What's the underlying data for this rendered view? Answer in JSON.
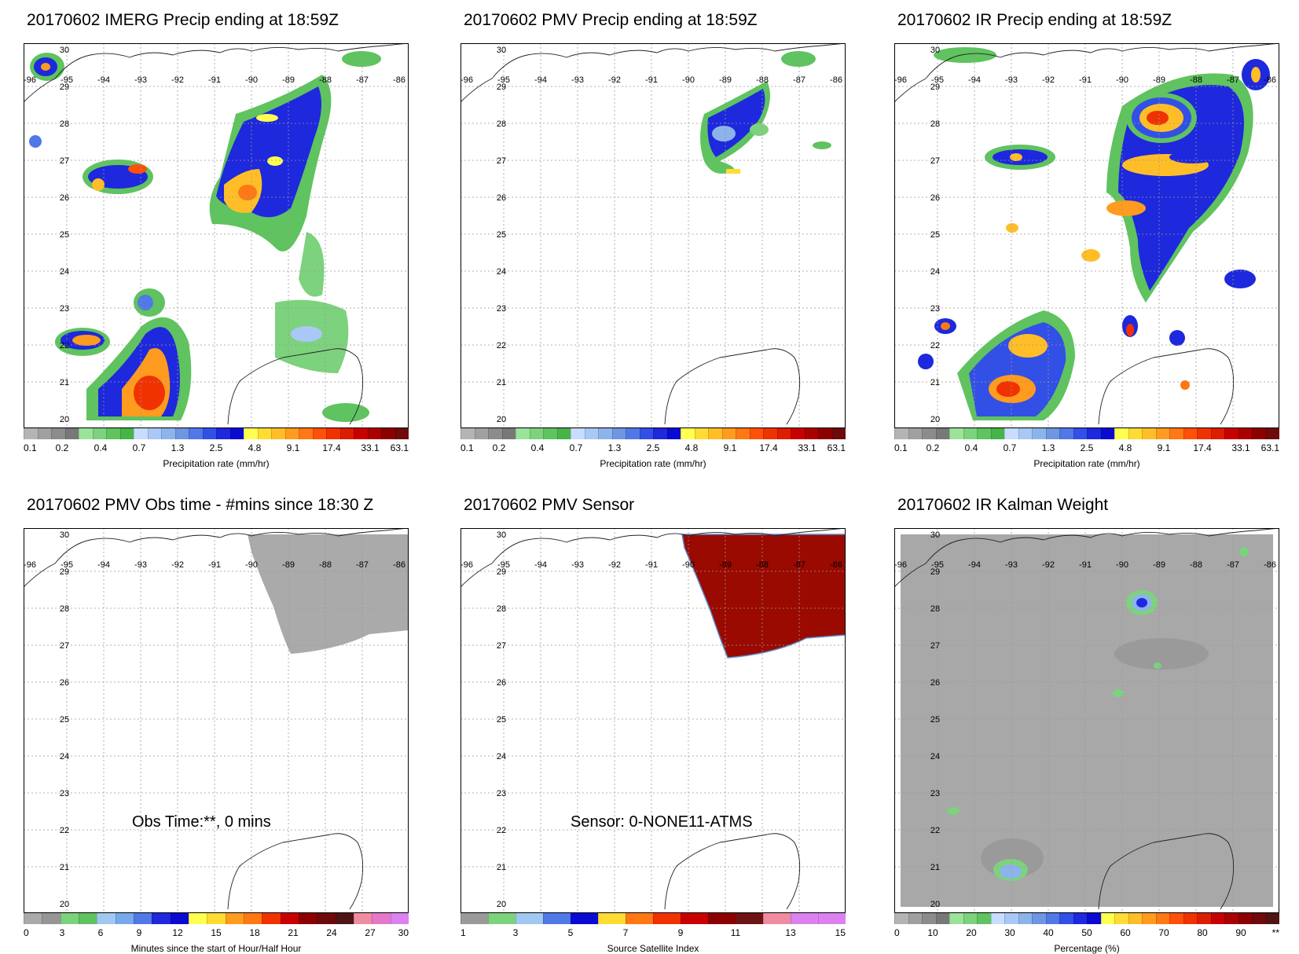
{
  "map": {
    "lon_labels": [
      "-96",
      "-95",
      "-94",
      "-93",
      "-92",
      "-91",
      "-90",
      "-89",
      "-88",
      "-87",
      "-86"
    ],
    "lat_labels": [
      "30",
      "29",
      "28",
      "27",
      "26",
      "25",
      "24",
      "23",
      "22",
      "21",
      "20"
    ]
  },
  "panels": [
    {
      "title": "20170602 IMERG Precip ending at 18:59Z",
      "colorbar_label": "Precipitation rate (mm/hr)",
      "ticks": [
        "0.1",
        "0.2",
        "0.4",
        "0.7",
        "1.3",
        "2.5",
        "4.8",
        "9.1",
        "17.4",
        "33.1",
        "63.1"
      ],
      "colors": [
        "#b4b4b4",
        "#a0a0a0",
        "#8c8c8c",
        "#787878",
        "#9be39b",
        "#7dd27d",
        "#5fc35f",
        "#46b446",
        "#c8dcff",
        "#aac8f5",
        "#8cb4eb",
        "#6e96e1",
        "#5078e6",
        "#3250e6",
        "#1e28dc",
        "#0a0ad2",
        "#ffff50",
        "#ffdc32",
        "#ffbe28",
        "#ff9b1e",
        "#ff7814",
        "#ff500a",
        "#f03200",
        "#dc1e00",
        "#c80000",
        "#aa0000",
        "#8c0000",
        "#6e0a0a"
      ],
      "overlay": ""
    },
    {
      "title": "20170602 PMV Precip ending at 18:59Z",
      "colorbar_label": "Precipitation rate (mm/hr)",
      "ticks": [
        "0.1",
        "0.2",
        "0.4",
        "0.7",
        "1.3",
        "2.5",
        "4.8",
        "9.1",
        "17.4",
        "33.1",
        "63.1"
      ],
      "colors": [
        "#b4b4b4",
        "#a0a0a0",
        "#8c8c8c",
        "#787878",
        "#9be39b",
        "#7dd27d",
        "#5fc35f",
        "#46b446",
        "#c8dcff",
        "#aac8f5",
        "#8cb4eb",
        "#6e96e1",
        "#5078e6",
        "#3250e6",
        "#1e28dc",
        "#0a0ad2",
        "#ffff50",
        "#ffdc32",
        "#ffbe28",
        "#ff9b1e",
        "#ff7814",
        "#ff500a",
        "#f03200",
        "#dc1e00",
        "#c80000",
        "#aa0000",
        "#8c0000",
        "#6e0a0a"
      ],
      "overlay": ""
    },
    {
      "title": "20170602 IR Precip ending at 18:59Z",
      "colorbar_label": "Precipitation rate (mm/hr)",
      "ticks": [
        "0.1",
        "0.2",
        "0.4",
        "0.7",
        "1.3",
        "2.5",
        "4.8",
        "9.1",
        "17.4",
        "33.1",
        "63.1"
      ],
      "colors": [
        "#b4b4b4",
        "#a0a0a0",
        "#8c8c8c",
        "#787878",
        "#9be39b",
        "#7dd27d",
        "#5fc35f",
        "#46b446",
        "#c8dcff",
        "#aac8f5",
        "#8cb4eb",
        "#6e96e1",
        "#5078e6",
        "#3250e6",
        "#1e28dc",
        "#0a0ad2",
        "#ffff50",
        "#ffdc32",
        "#ffbe28",
        "#ff9b1e",
        "#ff7814",
        "#ff500a",
        "#f03200",
        "#dc1e00",
        "#c80000",
        "#aa0000",
        "#8c0000",
        "#6e0a0a"
      ],
      "overlay": ""
    },
    {
      "title": "20170602 PMV Obs time - #mins since 18:30 Z",
      "colorbar_label": "Minutes since the start of Hour/Half Hour",
      "ticks": [
        "0",
        "3",
        "6",
        "9",
        "12",
        "15",
        "18",
        "21",
        "24",
        "27",
        "30"
      ],
      "colors": [
        "#aaaaaa",
        "#969696",
        "#7dd27d",
        "#5fc35f",
        "#a0c8f0",
        "#78aaeb",
        "#5078e6",
        "#1e28dc",
        "#0a0ad2",
        "#ffff50",
        "#ffdc32",
        "#ff9b1e",
        "#ff7814",
        "#f03200",
        "#c80000",
        "#8c0000",
        "#6e0a0a",
        "#501414",
        "#f08ca0",
        "#e678c8",
        "#dc82f0"
      ],
      "overlay": "Obs Time:**, 0 mins"
    },
    {
      "title": "20170602 PMV Sensor",
      "colorbar_label": "Source Satellite Index",
      "ticks": [
        "1",
        "3",
        "5",
        "7",
        "9",
        "11",
        "13",
        "15"
      ],
      "colors": [
        "#9a9a9a",
        "#7dd27d",
        "#a0c8f0",
        "#5078e6",
        "#0a0ad2",
        "#ffdc32",
        "#ff7814",
        "#f03200",
        "#c80000",
        "#8c0000",
        "#6e1414",
        "#f08ca0",
        "#dc82f0",
        "#dc82f0"
      ],
      "overlay": "Sensor:  0-NONE11-ATMS"
    },
    {
      "title": "20170602 IR Kalman Weight",
      "colorbar_label": "Percentage (%)",
      "ticks": [
        "0",
        "10",
        "20",
        "30",
        "40",
        "50",
        "60",
        "70",
        "80",
        "90",
        "**"
      ],
      "colors": [
        "#b4b4b4",
        "#a0a0a0",
        "#8c8c8c",
        "#787878",
        "#9be39b",
        "#7dd27d",
        "#5fc35f",
        "#c8dcff",
        "#aac8f5",
        "#8cb4eb",
        "#6e96e1",
        "#5078e6",
        "#3250e6",
        "#1e28dc",
        "#0a0ad2",
        "#ffff50",
        "#ffdc32",
        "#ffbe28",
        "#ff9b1e",
        "#ff7814",
        "#ff500a",
        "#f03200",
        "#dc1e00",
        "#c80000",
        "#aa0000",
        "#8c0000",
        "#6e0a0a",
        "#501414"
      ],
      "overlay": ""
    }
  ]
}
